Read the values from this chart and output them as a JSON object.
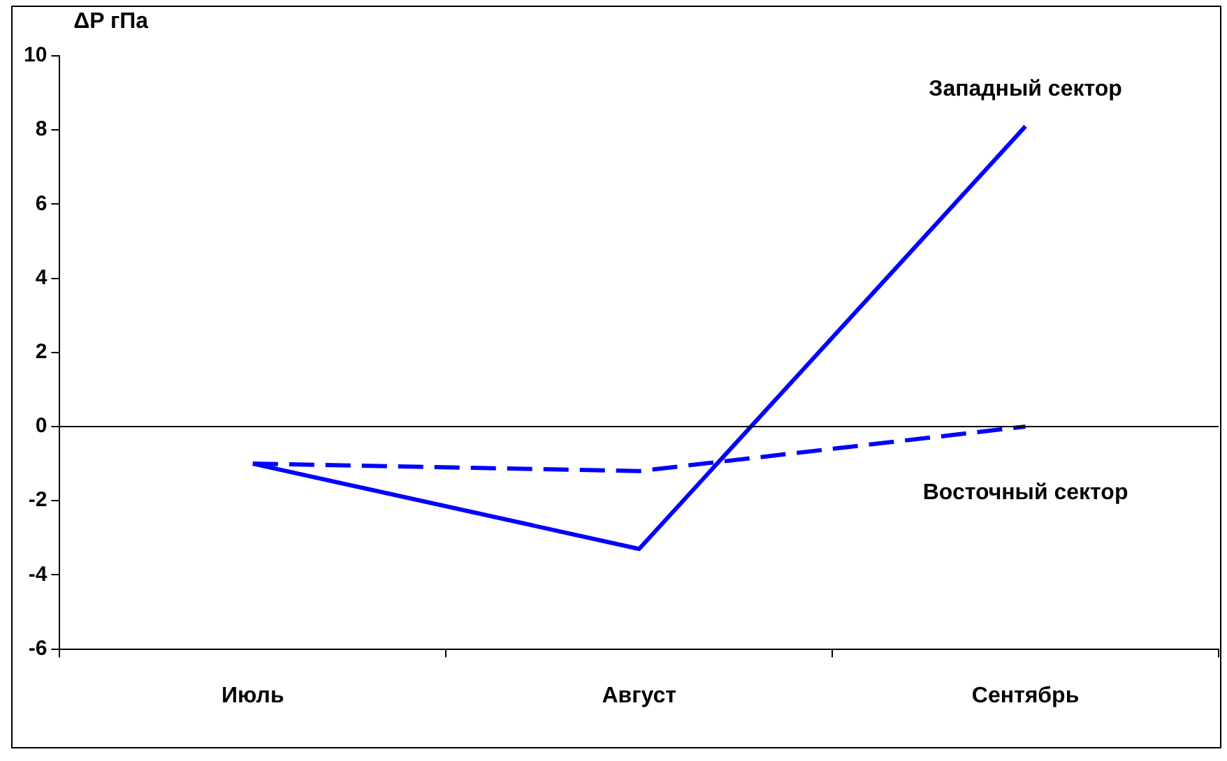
{
  "chart_data": {
    "type": "line",
    "ylabel": "ΔP гПа",
    "categories": [
      "Июль",
      "Август",
      "Сентябрь"
    ],
    "series": [
      {
        "name": "Западный сектор",
        "color": "#0000ff",
        "values": [
          -1,
          -3.3,
          8.1
        ],
        "line_style": "solid"
      },
      {
        "name": "Восточный сектор",
        "color": "#0000ff",
        "values": [
          -1,
          -1.2,
          0
        ],
        "line_style": "dashed"
      }
    ],
    "ylim": [
      -6,
      10
    ],
    "yticks": [
      -6,
      -4,
      -2,
      0,
      2,
      4,
      6,
      8,
      10
    ],
    "ref_lines": [
      {
        "axis": "y",
        "value": 0,
        "color": "#000000"
      }
    ],
    "legend": false,
    "marker": "none"
  }
}
